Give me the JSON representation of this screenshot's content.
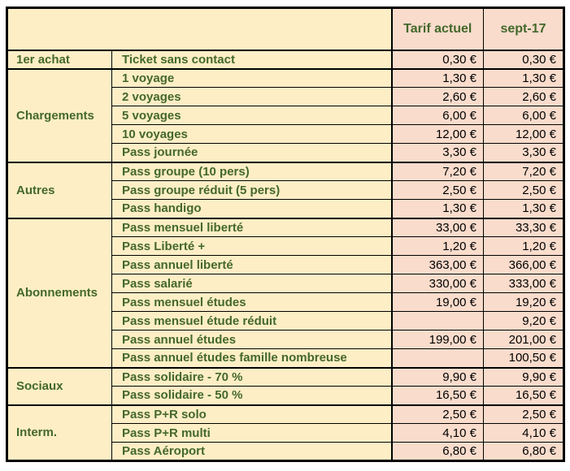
{
  "table": {
    "colors": {
      "label_bg": "#fdeec6",
      "price_bg": "#f9dccc",
      "label_text": "#44682b",
      "price_text": "#000000",
      "border": "#000000"
    },
    "header": {
      "current_label": "Tarif actuel",
      "new_label": "sept-17"
    },
    "groups": [
      {
        "category": "1er achat",
        "rows": [
          {
            "label": "Ticket sans contact",
            "current": "0,30 €",
            "new": "0,30 €"
          }
        ]
      },
      {
        "category": "Chargements",
        "rows": [
          {
            "label": "1 voyage",
            "current": "1,30 €",
            "new": "1,30 €"
          },
          {
            "label": "2 voyages",
            "current": "2,60 €",
            "new": "2,60 €"
          },
          {
            "label": "5 voyages",
            "current": "6,00 €",
            "new": "6,00 €"
          },
          {
            "label": "10 voyages",
            "current": "12,00 €",
            "new": "12,00 €"
          },
          {
            "label": "Pass journée",
            "current": "3,30 €",
            "new": "3,30 €"
          }
        ]
      },
      {
        "category": "Autres",
        "rows": [
          {
            "label": "Pass groupe (10 pers)",
            "current": "7,20 €",
            "new": "7,20 €"
          },
          {
            "label": "Pass groupe réduit (5 pers)",
            "current": "2,50 €",
            "new": "2,50 €"
          },
          {
            "label": "Pass handigo",
            "current": "1,30 €",
            "new": "1,30 €"
          }
        ]
      },
      {
        "category": "Abonnements",
        "rows": [
          {
            "label": "Pass mensuel liberté",
            "current": "33,00 €",
            "new": "33,30 €"
          },
          {
            "label": "Pass Liberté +",
            "current": "1,20 €",
            "new": "1,20 €"
          },
          {
            "label": "Pass annuel liberté",
            "current": "363,00 €",
            "new": "366,00 €"
          },
          {
            "label": "Pass salarié",
            "current": "330,00 €",
            "new": "333,00 €"
          },
          {
            "label": "Pass mensuel études",
            "current": "19,00 €",
            "new": "19,20 €"
          },
          {
            "label": "Pass mensuel étude réduit",
            "current": "",
            "new": "9,20 €"
          },
          {
            "label": "Pass annuel études",
            "current": "199,00 €",
            "new": "201,00 €"
          },
          {
            "label": "Pass annuel études famille nombreuse",
            "current": "",
            "new": "100,50 €"
          }
        ]
      },
      {
        "category": "Sociaux",
        "rows": [
          {
            "label": "Pass solidaire - 70 %",
            "current": "9,90 €",
            "new": "9,90 €"
          },
          {
            "label": "Pass solidaire - 50 %",
            "current": "16,50 €",
            "new": "16,50 €"
          }
        ]
      },
      {
        "category": "Interm.",
        "rows": [
          {
            "label": "Pass P+R solo",
            "current": "2,50 €",
            "new": "2,50 €"
          },
          {
            "label": "Pass P+R multi",
            "current": "4,10 €",
            "new": "4,10 €"
          },
          {
            "label": "Pass Aéroport",
            "current": "6,80 €",
            "new": "6,80 €"
          }
        ]
      }
    ]
  }
}
